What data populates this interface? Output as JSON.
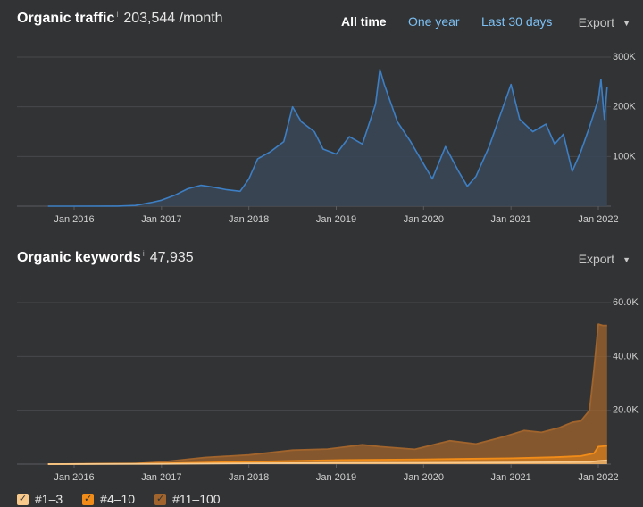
{
  "traffic": {
    "title": "Organic traffic",
    "info_mark": "i",
    "value": "203,544 /month",
    "ranges": [
      "All time",
      "One year",
      "Last 30 days"
    ],
    "export_label": "Export"
  },
  "keywords": {
    "title": "Organic keywords",
    "info_mark": "i",
    "value": "47,935",
    "export_label": "Export"
  },
  "colors": {
    "traffic_line": "#3d7fc4",
    "rank_1_3": "#f8c98b",
    "rank_4_10": "#f28c18",
    "rank_11_100": "#a0642c"
  },
  "icons": [
    "info-icon",
    "chevron-down-icon",
    "checkbox-checked-icon"
  ],
  "legend": [
    {
      "label": "#1–3",
      "color": "#f8c98b"
    },
    {
      "label": "#4–10",
      "color": "#f28c18"
    },
    {
      "label": "#11–100",
      "color": "#a0642c"
    }
  ],
  "chart_data": [
    {
      "type": "area",
      "series": [
        {
          "values": [
            [
              2015.7,
              0
            ],
            [
              2016.0,
              0
            ],
            [
              2016.5,
              100
            ],
            [
              2016.7,
              1500
            ],
            [
              2016.9,
              8000
            ],
            [
              2017.0,
              12000
            ],
            [
              2017.15,
              22000
            ],
            [
              2017.3,
              35000
            ],
            [
              2017.45,
              42000
            ],
            [
              2017.6,
              38000
            ],
            [
              2017.75,
              33000
            ],
            [
              2017.9,
              30000
            ],
            [
              2018.0,
              55000
            ],
            [
              2018.1,
              95000
            ],
            [
              2018.25,
              110000
            ],
            [
              2018.4,
              130000
            ],
            [
              2018.5,
              200000
            ],
            [
              2018.6,
              170000
            ],
            [
              2018.75,
              150000
            ],
            [
              2018.85,
              115000
            ],
            [
              2019.0,
              105000
            ],
            [
              2019.15,
              140000
            ],
            [
              2019.3,
              125000
            ],
            [
              2019.45,
              205000
            ],
            [
              2019.5,
              275000
            ],
            [
              2019.55,
              245000
            ],
            [
              2019.7,
              170000
            ],
            [
              2019.85,
              130000
            ],
            [
              2019.95,
              100000
            ],
            [
              2020.1,
              55000
            ],
            [
              2020.25,
              120000
            ],
            [
              2020.4,
              70000
            ],
            [
              2020.5,
              40000
            ],
            [
              2020.6,
              60000
            ],
            [
              2020.75,
              120000
            ],
            [
              2020.9,
              195000
            ],
            [
              2021.0,
              245000
            ],
            [
              2021.1,
              175000
            ],
            [
              2021.25,
              150000
            ],
            [
              2021.4,
              165000
            ],
            [
              2021.5,
              125000
            ],
            [
              2021.6,
              145000
            ],
            [
              2021.7,
              70000
            ],
            [
              2021.8,
              110000
            ],
            [
              2021.9,
              160000
            ],
            [
              2022.0,
              215000
            ],
            [
              2022.03,
              255000
            ],
            [
              2022.07,
              175000
            ],
            [
              2022.1,
              240000
            ]
          ]
        }
      ],
      "x_ticks": [
        "Jan 2016",
        "Jan 2017",
        "Jan 2018",
        "Jan 2019",
        "Jan 2020",
        "Jan 2021",
        "Jan 2022"
      ],
      "y_ticks": [
        "100K",
        "200K",
        "300K"
      ],
      "ylim": [
        0,
        300000
      ],
      "grid": true
    },
    {
      "type": "area",
      "series": [
        {
          "name": "#1–3",
          "values": [
            [
              2015.7,
              0
            ],
            [
              2017.0,
              100
            ],
            [
              2018.0,
              300
            ],
            [
              2019.0,
              450
            ],
            [
              2020.0,
              500
            ],
            [
              2021.0,
              600
            ],
            [
              2021.5,
              700
            ],
            [
              2021.9,
              800
            ],
            [
              2022.0,
              1200
            ],
            [
              2022.1,
              1400
            ]
          ]
        },
        {
          "name": "#4–10",
          "values": [
            [
              2015.7,
              0
            ],
            [
              2017.0,
              300
            ],
            [
              2018.0,
              900
            ],
            [
              2019.0,
              1500
            ],
            [
              2020.0,
              1800
            ],
            [
              2021.0,
              2200
            ],
            [
              2021.5,
              2600
            ],
            [
              2021.8,
              3000
            ],
            [
              2021.95,
              4000
            ],
            [
              2022.0,
              6500
            ],
            [
              2022.1,
              6800
            ]
          ]
        },
        {
          "name": "#11–100",
          "values": [
            [
              2015.7,
              0
            ],
            [
              2016.7,
              200
            ],
            [
              2017.0,
              800
            ],
            [
              2017.5,
              2500
            ],
            [
              2018.0,
              3400
            ],
            [
              2018.5,
              5200
            ],
            [
              2018.9,
              5600
            ],
            [
              2019.3,
              7200
            ],
            [
              2019.5,
              6500
            ],
            [
              2019.9,
              5500
            ],
            [
              2020.3,
              8700
            ],
            [
              2020.6,
              7500
            ],
            [
              2020.9,
              10000
            ],
            [
              2021.15,
              12500
            ],
            [
              2021.35,
              11800
            ],
            [
              2021.55,
              13500
            ],
            [
              2021.7,
              15500
            ],
            [
              2021.8,
              16000
            ],
            [
              2021.9,
              20000
            ],
            [
              2021.95,
              35000
            ],
            [
              2022.0,
              52000
            ],
            [
              2022.05,
              51500
            ],
            [
              2022.1,
              51500
            ]
          ]
        }
      ],
      "x_ticks": [
        "Jan 2016",
        "Jan 2017",
        "Jan 2018",
        "Jan 2019",
        "Jan 2020",
        "Jan 2021",
        "Jan 2022"
      ],
      "y_ticks": [
        "20.0K",
        "40.0K",
        "60.0K"
      ],
      "ylim": [
        0,
        60000
      ],
      "grid": true,
      "legend": "bottom-left"
    }
  ]
}
